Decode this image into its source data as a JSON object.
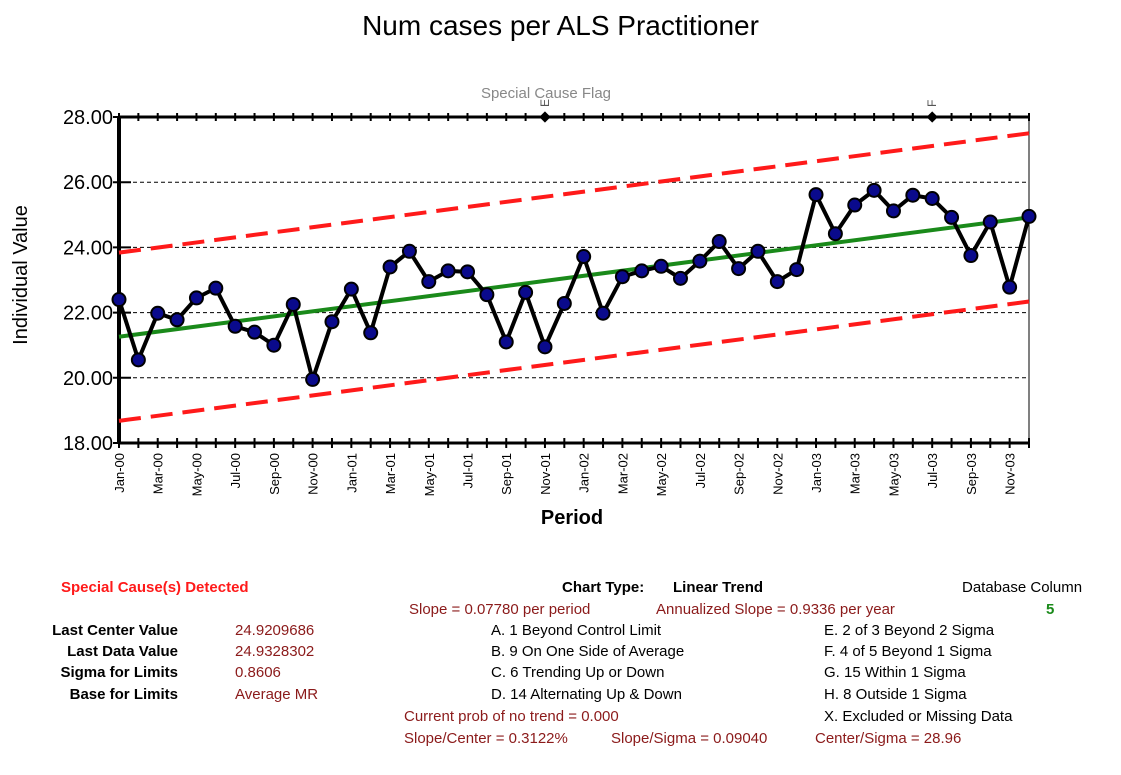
{
  "chart_data": {
    "type": "line",
    "title": "Num cases per ALS Practitioner",
    "xlabel": "Period",
    "ylabel": "Individual Value",
    "ylim": [
      18,
      28
    ],
    "yticks": [
      "18.00",
      "20.00",
      "22.00",
      "24.00",
      "26.00",
      "28.00"
    ],
    "grid": true,
    "special_cause_label": "Special Cause Flag",
    "flags": [
      {
        "period": "Nov-01",
        "label": "E"
      },
      {
        "period": "Jul-03",
        "label": "F"
      }
    ],
    "x": [
      "Jan-00",
      "Feb-00",
      "Mar-00",
      "Apr-00",
      "May-00",
      "Jun-00",
      "Jul-00",
      "Aug-00",
      "Sep-00",
      "Oct-00",
      "Nov-00",
      "Dec-00",
      "Jan-01",
      "Feb-01",
      "Mar-01",
      "Apr-01",
      "May-01",
      "Jun-01",
      "Jul-01",
      "Aug-01",
      "Sep-01",
      "Oct-01",
      "Nov-01",
      "Dec-01",
      "Jan-02",
      "Feb-02",
      "Mar-02",
      "Apr-02",
      "May-02",
      "Jun-02",
      "Jul-02",
      "Aug-02",
      "Sep-02",
      "Oct-02",
      "Nov-02",
      "Dec-02",
      "Jan-03",
      "Feb-03",
      "Mar-03",
      "Apr-03",
      "May-03",
      "Jun-03",
      "Jul-03",
      "Aug-03",
      "Sep-03",
      "Oct-03",
      "Nov-03",
      "Dec-03"
    ],
    "xtick_labels": [
      "Jan-00",
      "Mar-00",
      "May-00",
      "Jul-00",
      "Sep-00",
      "Nov-00",
      "Jan-01",
      "Mar-01",
      "May-01",
      "Jul-01",
      "Sep-01",
      "Nov-01",
      "Jan-02",
      "Mar-02",
      "May-02",
      "Jul-02",
      "Sep-02",
      "Nov-02",
      "Jan-03",
      "Mar-03",
      "May-03",
      "Jul-03",
      "Sep-03",
      "Nov-03"
    ],
    "series": [
      {
        "name": "Individual Value",
        "values": [
          22.4,
          20.55,
          21.98,
          21.78,
          22.45,
          22.75,
          21.58,
          21.4,
          21.0,
          22.25,
          19.95,
          21.72,
          22.72,
          21.38,
          23.4,
          23.88,
          22.95,
          23.28,
          23.25,
          22.55,
          21.1,
          22.62,
          20.95,
          22.28,
          23.72,
          21.98,
          23.1,
          23.28,
          23.42,
          23.05,
          23.58,
          24.18,
          23.35,
          23.88,
          22.95,
          23.32,
          25.62,
          24.42,
          25.3,
          25.75,
          25.12,
          25.6,
          25.5,
          24.92,
          23.75,
          24.78,
          22.78,
          24.95
        ]
      },
      {
        "name": "Center Line (Linear Trend)",
        "start": 21.26,
        "end": 24.92
      },
      {
        "name": "Upper Control Limit",
        "start": 23.84,
        "end": 27.5
      },
      {
        "name": "Lower Control Limit",
        "start": 18.68,
        "end": 22.34
      }
    ],
    "colors": {
      "data": "#000000",
      "marker": "#0a0a8c",
      "center": "#1a8a1a",
      "limits": "#ff1a1a",
      "flag_text": "#888888"
    }
  },
  "summary": {
    "special_cause": "Special Cause(s) Detected",
    "chart_type_label": "Chart Type:",
    "chart_type_value": "Linear Trend",
    "db_column_label": "Database Column",
    "db_column_value": "5",
    "slope": "Slope = 0.07780 per period",
    "annual_slope": "Annualized Slope = 0.9336 per year",
    "stats": [
      {
        "label": "Last Center Value",
        "value": "24.9209686"
      },
      {
        "label": "Last Data Value",
        "value": "24.9328302"
      },
      {
        "label": "Sigma for Limits",
        "value": "0.8606"
      },
      {
        "label": "Base for Limits",
        "value": "Average MR"
      }
    ],
    "rules_left": [
      "A.  1 Beyond Control Limit",
      "B.  9 On One Side of Average",
      "C.  6 Trending Up or Down",
      "D.  14 Alternating  Up & Down"
    ],
    "rules_right": [
      "E.  2 of 3 Beyond 2 Sigma",
      "F.  4 of 5 Beyond 1 Sigma",
      "G.  15 Within 1 Sigma",
      "H.  8 Outside 1 Sigma",
      "X.  Excluded or Missing Data"
    ],
    "prob_no_trend": "Current prob of no trend = 0.000",
    "slope_center": "Slope/Center = 0.3122%",
    "slope_sigma": "Slope/Sigma = 0.09040",
    "center_sigma": "Center/Sigma = 28.96"
  }
}
